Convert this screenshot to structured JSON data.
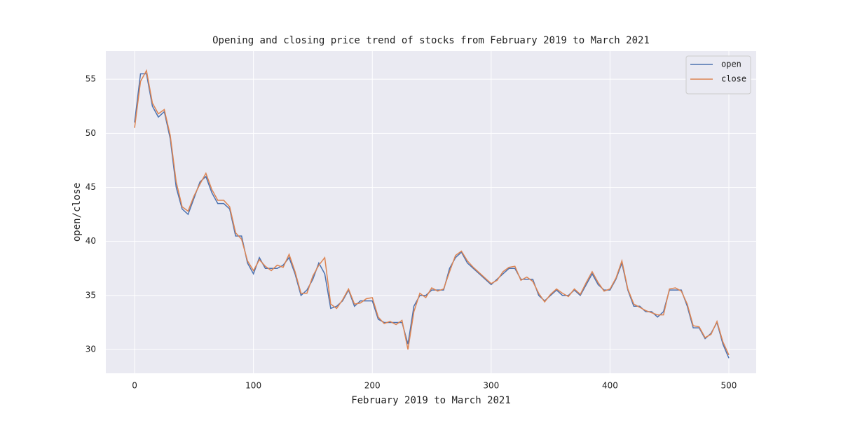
{
  "chart_data": {
    "type": "line",
    "title": "Opening and closing price trend of stocks from February 2019 to March 2021",
    "x_label": "February 2019 to March 2021",
    "y_label": "open/close",
    "x": [
      0,
      5,
      10,
      15,
      20,
      25,
      30,
      35,
      40,
      45,
      50,
      55,
      60,
      65,
      70,
      75,
      80,
      85,
      90,
      95,
      100,
      105,
      110,
      115,
      120,
      125,
      130,
      135,
      140,
      145,
      150,
      155,
      160,
      165,
      170,
      175,
      180,
      185,
      190,
      195,
      200,
      205,
      210,
      215,
      220,
      225,
      230,
      235,
      240,
      245,
      250,
      255,
      260,
      265,
      270,
      275,
      280,
      285,
      290,
      295,
      300,
      305,
      310,
      315,
      320,
      325,
      330,
      335,
      340,
      345,
      350,
      355,
      360,
      365,
      370,
      375,
      380,
      385,
      390,
      395,
      400,
      405,
      410,
      415,
      420,
      425,
      430,
      435,
      440,
      445,
      450,
      455,
      460,
      465,
      470,
      475,
      480,
      485,
      490,
      495,
      500
    ],
    "series": [
      {
        "name": "open",
        "color": "#4c72b0",
        "values": [
          51.0,
          55.5,
          55.5,
          52.5,
          51.5,
          52.0,
          49.5,
          45.0,
          43.0,
          42.5,
          44.0,
          45.5,
          46.0,
          44.5,
          43.5,
          43.5,
          43.0,
          40.5,
          40.5,
          38.0,
          37.0,
          38.5,
          37.5,
          37.5,
          37.5,
          37.8,
          38.5,
          37.0,
          35.0,
          35.5,
          36.5,
          38.0,
          37.0,
          33.8,
          34.0,
          34.5,
          35.5,
          34.0,
          34.5,
          34.5,
          34.5,
          32.8,
          32.5,
          32.5,
          32.5,
          32.5,
          30.5,
          34.0,
          35.0,
          35.0,
          35.5,
          35.5,
          35.5,
          37.5,
          38.5,
          39.0,
          38.0,
          37.5,
          37.0,
          36.5,
          36.0,
          36.5,
          37.0,
          37.5,
          37.5,
          36.5,
          36.5,
          36.5,
          35.0,
          34.5,
          35.0,
          35.5,
          35.0,
          35.0,
          35.5,
          35.0,
          36.0,
          37.0,
          36.0,
          35.5,
          35.5,
          36.5,
          38.0,
          35.5,
          34.0,
          34.0,
          33.5,
          33.5,
          33.0,
          33.5,
          35.5,
          35.5,
          35.5,
          34.0,
          32.0,
          32.0,
          31.0,
          31.5,
          32.5,
          30.5,
          29.2
        ]
      },
      {
        "name": "close",
        "color": "#dd8452",
        "values": [
          50.5,
          54.8,
          55.8,
          52.8,
          51.8,
          52.2,
          49.8,
          45.5,
          43.2,
          42.8,
          44.2,
          45.3,
          46.3,
          44.8,
          43.8,
          43.8,
          43.2,
          40.8,
          40.2,
          38.2,
          37.3,
          38.3,
          37.7,
          37.3,
          37.8,
          37.6,
          38.8,
          37.2,
          35.2,
          35.2,
          36.8,
          37.8,
          38.5,
          34.2,
          33.8,
          34.6,
          35.6,
          34.2,
          34.3,
          34.7,
          34.8,
          33.0,
          32.4,
          32.6,
          32.3,
          32.7,
          30.0,
          33.5,
          35.2,
          34.8,
          35.7,
          35.4,
          35.6,
          37.2,
          38.7,
          39.1,
          38.2,
          37.6,
          37.1,
          36.6,
          36.1,
          36.4,
          37.2,
          37.6,
          37.7,
          36.4,
          36.7,
          36.3,
          35.2,
          34.4,
          35.1,
          35.6,
          35.2,
          34.9,
          35.6,
          35.1,
          36.2,
          37.2,
          36.2,
          35.4,
          35.6,
          36.6,
          38.2,
          35.6,
          34.2,
          33.9,
          33.6,
          33.4,
          33.2,
          33.2,
          35.6,
          35.7,
          35.4,
          34.2,
          32.2,
          32.1,
          31.1,
          31.4,
          32.6,
          30.7,
          29.5
        ]
      }
    ],
    "xlim": [
      -24.2,
      523
    ],
    "ylim": [
      27.8,
      57.6
    ],
    "xticks": [
      0,
      100,
      200,
      300,
      400,
      500
    ],
    "yticks": [
      30,
      35,
      40,
      45,
      50,
      55
    ],
    "grid": true,
    "legend": "upper right"
  }
}
